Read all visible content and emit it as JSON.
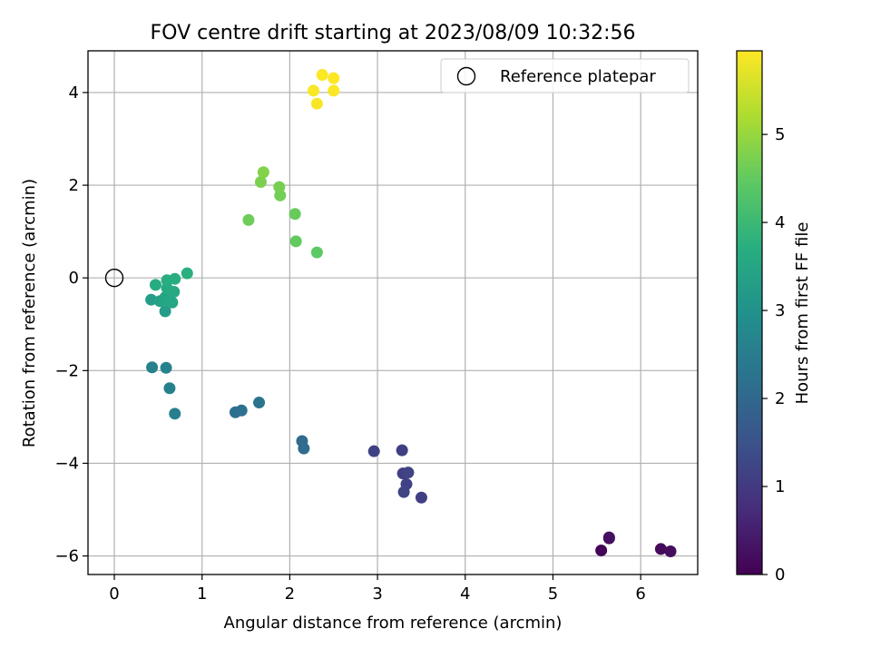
{
  "chart_data": {
    "type": "scatter",
    "title": "FOV centre drift starting at 2023/08/09 10:32:56",
    "xlabel": "Angular distance from reference (arcmin)",
    "ylabel": "Rotation from reference (arcmin)",
    "xlim": [
      -0.3,
      6.65
    ],
    "ylim": [
      -6.4,
      4.9
    ],
    "xticks": [
      0,
      1,
      2,
      3,
      4,
      5,
      6
    ],
    "xtick_labels": [
      "0",
      "1",
      "2",
      "3",
      "4",
      "5",
      "6"
    ],
    "yticks": [
      -6,
      -4,
      -2,
      0,
      2,
      4
    ],
    "ytick_labels": [
      "−6",
      "−4",
      "−2",
      "0",
      "2",
      "4"
    ],
    "grid": true,
    "legend": {
      "placement": "top-right",
      "entries": [
        {
          "label": "Reference platepar",
          "marker": "open-circle"
        }
      ]
    },
    "reference_point": {
      "x": 0,
      "y": 0
    },
    "colorbar": {
      "label": "Hours from first FF file",
      "colormap": "viridis",
      "range": [
        0,
        5.95
      ],
      "ticks": [
        0,
        1,
        2,
        3,
        4,
        5
      ],
      "tick_labels": [
        "0",
        "1",
        "2",
        "3",
        "4",
        "5"
      ]
    },
    "points": [
      {
        "x": 5.55,
        "y": -5.88,
        "hours": 0.05
      },
      {
        "x": 5.64,
        "y": -5.62,
        "hours": 0.1
      },
      {
        "x": 6.23,
        "y": -5.85,
        "hours": 0.15
      },
      {
        "x": 6.34,
        "y": -5.9,
        "hours": 0.2
      },
      {
        "x": 5.64,
        "y": -5.6,
        "hours": 0.25
      },
      {
        "x": 3.28,
        "y": -3.72,
        "hours": 1.1
      },
      {
        "x": 2.96,
        "y": -3.74,
        "hours": 1.15
      },
      {
        "x": 3.29,
        "y": -4.22,
        "hours": 1.1
      },
      {
        "x": 3.35,
        "y": -4.2,
        "hours": 1.2
      },
      {
        "x": 3.33,
        "y": -4.45,
        "hours": 1.15
      },
      {
        "x": 3.3,
        "y": -4.62,
        "hours": 1.2
      },
      {
        "x": 3.5,
        "y": -4.74,
        "hours": 1.1
      },
      {
        "x": 2.14,
        "y": -3.52,
        "hours": 2.05
      },
      {
        "x": 2.16,
        "y": -3.68,
        "hours": 2.1
      },
      {
        "x": 1.38,
        "y": -2.9,
        "hours": 2.15
      },
      {
        "x": 1.45,
        "y": -2.86,
        "hours": 2.2
      },
      {
        "x": 1.65,
        "y": -2.69,
        "hours": 2.25
      },
      {
        "x": 0.69,
        "y": -2.93,
        "hours": 2.55
      },
      {
        "x": 0.63,
        "y": -2.38,
        "hours": 2.6
      },
      {
        "x": 0.43,
        "y": -1.93,
        "hours": 2.6
      },
      {
        "x": 0.59,
        "y": -1.94,
        "hours": 2.65
      },
      {
        "x": 0.58,
        "y": -0.72,
        "hours": 3.25
      },
      {
        "x": 0.42,
        "y": -0.47,
        "hours": 3.3
      },
      {
        "x": 0.52,
        "y": -0.5,
        "hours": 3.4
      },
      {
        "x": 0.58,
        "y": -0.42,
        "hours": 3.45
      },
      {
        "x": 0.66,
        "y": -0.53,
        "hours": 3.5
      },
      {
        "x": 0.62,
        "y": -0.5,
        "hours": 3.55
      },
      {
        "x": 0.68,
        "y": -0.3,
        "hours": 3.6
      },
      {
        "x": 0.6,
        "y": -0.22,
        "hours": 3.6
      },
      {
        "x": 0.47,
        "y": -0.15,
        "hours": 3.65
      },
      {
        "x": 0.6,
        "y": -0.05,
        "hours": 3.7
      },
      {
        "x": 0.69,
        "y": -0.02,
        "hours": 3.7
      },
      {
        "x": 0.83,
        "y": 0.1,
        "hours": 3.75
      },
      {
        "x": 2.31,
        "y": 0.55,
        "hours": 4.45
      },
      {
        "x": 2.07,
        "y": 0.79,
        "hours": 4.5
      },
      {
        "x": 2.06,
        "y": 1.38,
        "hours": 4.55
      },
      {
        "x": 1.53,
        "y": 1.25,
        "hours": 4.6
      },
      {
        "x": 1.89,
        "y": 1.78,
        "hours": 4.65
      },
      {
        "x": 1.88,
        "y": 1.96,
        "hours": 4.7
      },
      {
        "x": 1.67,
        "y": 2.07,
        "hours": 4.75
      },
      {
        "x": 1.7,
        "y": 2.28,
        "hours": 4.8
      },
      {
        "x": 2.31,
        "y": 3.76,
        "hours": 5.9
      },
      {
        "x": 2.27,
        "y": 4.04,
        "hours": 5.92
      },
      {
        "x": 2.5,
        "y": 4.04,
        "hours": 5.93
      },
      {
        "x": 2.37,
        "y": 4.38,
        "hours": 5.94
      },
      {
        "x": 2.5,
        "y": 4.31,
        "hours": 5.95
      }
    ]
  }
}
